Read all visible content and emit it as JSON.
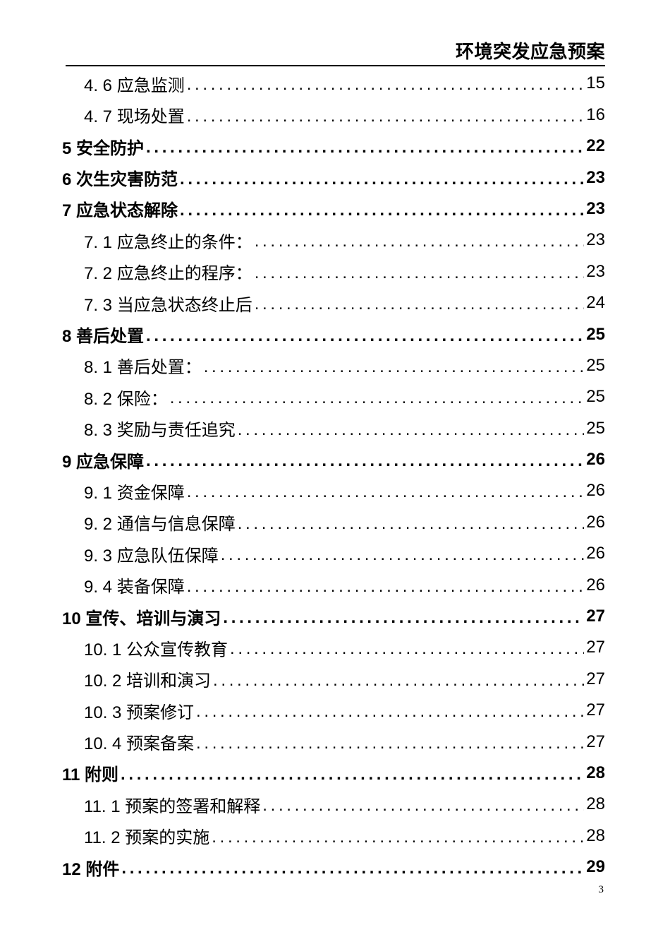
{
  "document": {
    "header": {
      "title": "环境突发应急预案"
    },
    "footer": {
      "page_number": "3"
    }
  },
  "toc": {
    "entries": [
      {
        "level": 2,
        "label": "4. 6 应急监测",
        "page": "15"
      },
      {
        "level": 2,
        "label": "4. 7 现场处置",
        "page": "16"
      },
      {
        "level": 1,
        "label": "5 安全防护",
        "page": "22"
      },
      {
        "level": 1,
        "label": "6 次生灾害防范",
        "page": "23"
      },
      {
        "level": 1,
        "label": "7 应急状态解除",
        "page": "23"
      },
      {
        "level": 2,
        "label": "7. 1 应急终止的条件： ",
        "page": "23"
      },
      {
        "level": 2,
        "label": "7. 2 应急终止的程序： ",
        "page": "23"
      },
      {
        "level": 2,
        "label": "7. 3 当应急状态终止后",
        "page": "24"
      },
      {
        "level": 1,
        "label": "8 善后处置",
        "page": "25"
      },
      {
        "level": 2,
        "label": "8. 1 善后处置： ",
        "page": "25"
      },
      {
        "level": 2,
        "label": "8. 2 保险： ",
        "page": "25"
      },
      {
        "level": 2,
        "label": "8. 3 奖励与责任追究",
        "page": "25"
      },
      {
        "level": 1,
        "label": "9 应急保障",
        "page": "26"
      },
      {
        "level": 2,
        "label": "9. 1 资金保障",
        "page": "26"
      },
      {
        "level": 2,
        "label": "9. 2 通信与信息保障",
        "page": "26"
      },
      {
        "level": 2,
        "label": "9. 3 应急队伍保障",
        "page": "26"
      },
      {
        "level": 2,
        "label": "9. 4 装备保障",
        "page": "26"
      },
      {
        "level": 1,
        "label": "10 宣传、培训与演习",
        "page": "27"
      },
      {
        "level": 2,
        "label": "10. 1 公众宣传教育",
        "page": "27"
      },
      {
        "level": 2,
        "label": "10. 2 培训和演习",
        "page": "27"
      },
      {
        "level": 2,
        "label": "10. 3 预案修订",
        "page": "27"
      },
      {
        "level": 2,
        "label": "10. 4 预案备案",
        "page": "27"
      },
      {
        "level": 1,
        "label": "11 附则",
        "page": "28"
      },
      {
        "level": 2,
        "label": "11. 1 预案的签署和解释",
        "page": "28"
      },
      {
        "level": 2,
        "label": "11. 2 预案的实施",
        "page": "28"
      },
      {
        "level": 1,
        "label": "12 附件",
        "page": "29"
      }
    ]
  }
}
